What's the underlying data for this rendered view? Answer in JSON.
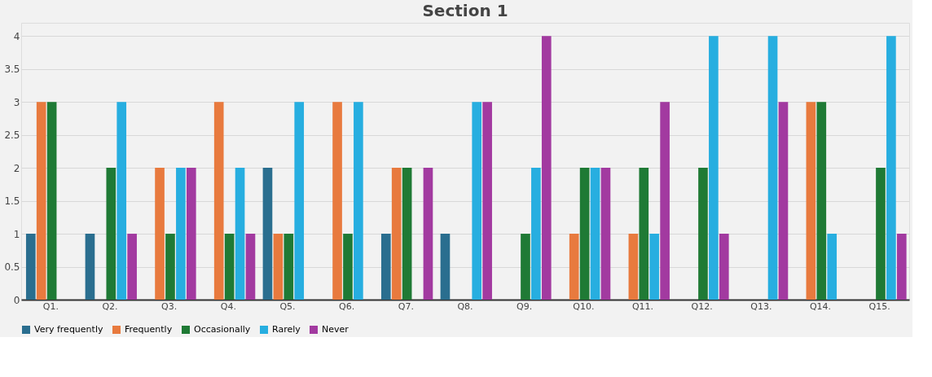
{
  "chart_data": {
    "type": "bar",
    "title": "Section 1",
    "categories": [
      "Q1.",
      "Q2.",
      "Q3.",
      "Q4.",
      "Q5.",
      "Q6.",
      "Q7.",
      "Q8.",
      "Q9.",
      "Q10.",
      "Q11.",
      "Q12.",
      "Q13.",
      "Q14.",
      "Q15."
    ],
    "series": [
      {
        "name": "Very frequently",
        "color": "#2a6e8f",
        "values": [
          1,
          1,
          0,
          0,
          2,
          0,
          1,
          1,
          0,
          0,
          0,
          0,
          0,
          0,
          0
        ]
      },
      {
        "name": "Frequently",
        "color": "#e87a3e",
        "values": [
          3,
          0,
          2,
          3,
          1,
          3,
          2,
          0,
          0,
          1,
          1,
          0,
          0,
          3,
          0
        ]
      },
      {
        "name": "Occasionally",
        "color": "#1f7a35",
        "values": [
          3,
          2,
          1,
          1,
          1,
          1,
          2,
          0,
          1,
          2,
          2,
          2,
          0,
          3,
          2
        ]
      },
      {
        "name": "Rarely",
        "color": "#27aee0",
        "values": [
          0,
          3,
          2,
          2,
          3,
          3,
          0,
          3,
          2,
          2,
          1,
          4,
          4,
          1,
          4
        ]
      },
      {
        "name": "Never",
        "color": "#a23aa0",
        "values": [
          0,
          1,
          2,
          1,
          0,
          0,
          2,
          3,
          4,
          2,
          3,
          1,
          3,
          0,
          1
        ]
      }
    ],
    "ylim": [
      0,
      4.2
    ],
    "yticks": [
      0,
      0.5,
      1,
      1.5,
      2,
      2.5,
      3,
      3.5,
      4
    ],
    "grid": "y",
    "legend": "bottom"
  }
}
